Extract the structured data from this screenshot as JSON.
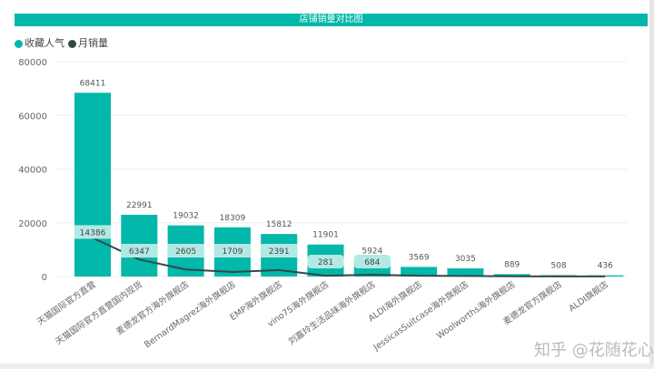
{
  "chart_data": {
    "type": "bar+line",
    "title": "店铺销量对比图",
    "legend": [
      {
        "name": "收藏人气",
        "color": "#01b8aa"
      },
      {
        "name": "月销量",
        "color": "#374649"
      }
    ],
    "legend_position": "top-left",
    "categories": [
      "天猫国际官方直营",
      "天猫国际官方直营国内现货",
      "麦德龙官方海外旗舰店",
      "BernardMagrez海外旗舰店",
      "EMP海外旗舰店",
      "vino75海外旗舰店",
      "刘嘉玲生活品味海外旗舰店",
      "ALDI海外旗舰店",
      "JessicasSuitcase海外旗舰店",
      "Woolworths海外旗舰店",
      "麦德龙官方旗舰店",
      "ALDI旗舰店"
    ],
    "series": [
      {
        "name": "收藏人气",
        "type": "bar",
        "values": [
          68411,
          22991,
          19032,
          18309,
          15812,
          11901,
          5924,
          3569,
          3035,
          889,
          508,
          436
        ]
      },
      {
        "name": "月销量",
        "type": "line",
        "values": [
          14386,
          6347,
          2605,
          1709,
          2391,
          281,
          684,
          300,
          200,
          100,
          50,
          30
        ],
        "labeled": [
          true,
          true,
          true,
          true,
          true,
          true,
          true,
          false,
          false,
          false,
          false,
          false
        ]
      }
    ],
    "yticks": [
      0,
      20000,
      40000,
      60000,
      80000
    ],
    "ylim": [
      0,
      80000
    ],
    "grid": true
  },
  "watermark": "知乎 @花随花心"
}
